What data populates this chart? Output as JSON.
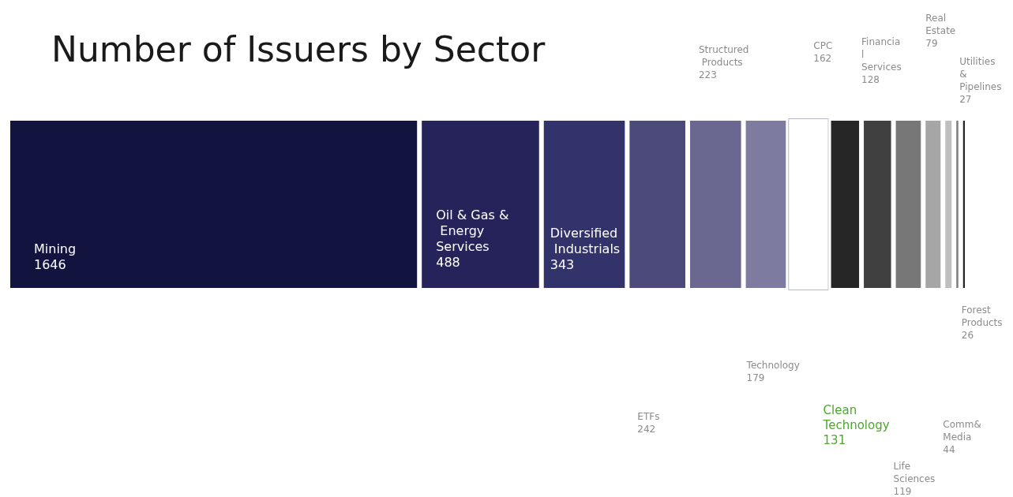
{
  "chart_data": {
    "type": "other",
    "title": "Number of Issuers by Sector",
    "data_labels": true,
    "categories": [
      "Mining",
      "Oil & Gas & Energy Services",
      "Diversified Industrials",
      "ETFs",
      "Structured Products",
      "Technology",
      "CPC",
      "Clean Technology",
      "Financial Services",
      "Life Sciences",
      "Real Estate",
      "Comm& Media",
      "Utilities & Pipelines",
      "Forest Products"
    ],
    "values": [
      1646,
      488,
      343,
      242,
      223,
      179,
      162,
      131,
      128,
      119,
      79,
      44,
      27,
      26
    ],
    "colors": [
      "#12133f",
      "#25235a",
      "#33336b",
      "#4b4a7b",
      "#6a6890",
      "#7e7ba0",
      "#ffffff",
      "#262626",
      "#404040",
      "#777777",
      "#a6a6a6",
      "#bfbfbf",
      "#7f7f7f",
      "#262626"
    ]
  }
}
